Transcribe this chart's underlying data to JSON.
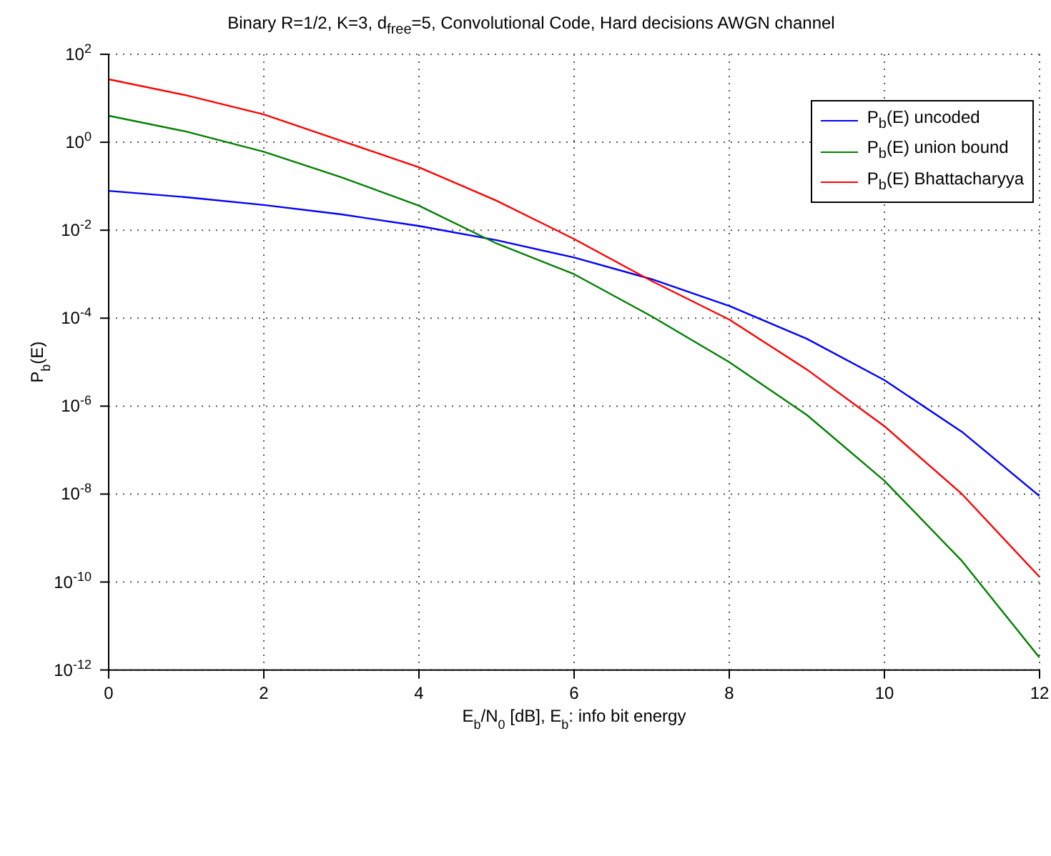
{
  "chart_data": {
    "type": "line",
    "title": "Binary R=1/2, K=3, d$_{free}$=5, Convolutional Code, Hard decisions AWGN channel",
    "xlabel": "E$_{b}$/N$_{0}$ [dB], E$_{b}$: info bit energy",
    "ylabel": "P$_{b}$(E)",
    "x": [
      0,
      1,
      2,
      3,
      4,
      5,
      6,
      7,
      8,
      9,
      10,
      11,
      12
    ],
    "series": [
      {
        "name": "P$_{b}$(E) uncoded",
        "color": "#0000ff",
        "values": [
          0.0786,
          0.0563,
          0.0375,
          0.0229,
          0.0125,
          0.00595,
          0.00239,
          0.00077,
          0.00019,
          3.4e-05,
          3.9e-06,
          2.6e-07,
          9e-09
        ]
      },
      {
        "name": "P$_{b}$(E) union bound",
        "color": "#008000",
        "values": [
          4.0,
          1.75,
          0.61,
          0.16,
          0.036,
          0.005,
          0.001,
          0.00011,
          1e-05,
          6.3e-07,
          2e-08,
          3e-10,
          1.9e-12
        ]
      },
      {
        "name": "P$_{b}$(E) Bhattacharyya",
        "color": "#ff0000",
        "values": [
          27,
          11.7,
          4.3,
          1.08,
          0.27,
          0.047,
          0.0063,
          0.0007,
          9.3e-05,
          6.8e-06,
          3.5e-07,
          1e-08,
          1.3e-10
        ]
      }
    ],
    "xlim": [
      0,
      12
    ],
    "xticks": [
      0,
      2,
      4,
      6,
      8,
      10,
      12
    ],
    "ylim": [
      1e-12,
      100
    ],
    "yticks": [
      {
        "value": 1e-12,
        "label": "10$^{-12}$"
      },
      {
        "value": 1e-10,
        "label": "10$^{-10}$"
      },
      {
        "value": 1e-08,
        "label": "10$^{-8}$"
      },
      {
        "value": 1e-06,
        "label": "10$^{-6}$"
      },
      {
        "value": 0.0001,
        "label": "10$^{-4}$"
      },
      {
        "value": 0.01,
        "label": "10$^{-2}$"
      },
      {
        "value": 1,
        "label": "10$^{0}$"
      },
      {
        "value": 100,
        "label": "10$^{2}$"
      }
    ],
    "log": "y",
    "grid": true,
    "legend": "top right",
    "line_style": "solid"
  }
}
